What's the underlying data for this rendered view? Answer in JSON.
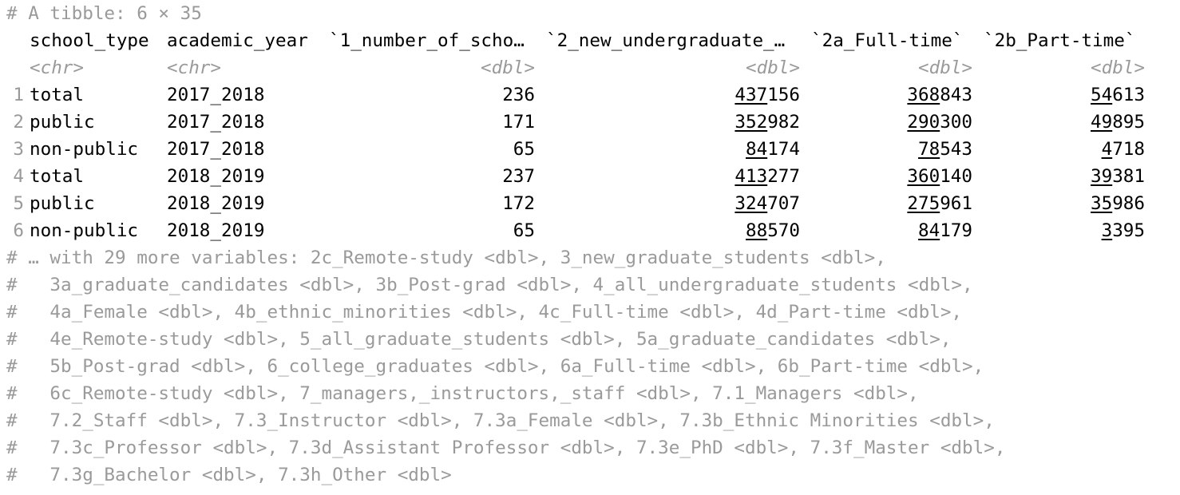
{
  "console": {
    "header": "# A tibble: 6 × 35",
    "columns": [
      {
        "name": "school_type",
        "type": "<chr>"
      },
      {
        "name": "academic_year",
        "type": "<chr>"
      },
      {
        "name": "`1_number_of_scho…",
        "type": "<dbl>"
      },
      {
        "name": "`2_new_undergraduate_…",
        "type": "<dbl>"
      },
      {
        "name": "`2a_Full-time`",
        "type": "<dbl>"
      },
      {
        "name": "`2b_Part-time`",
        "type": "<dbl>"
      }
    ],
    "rows": [
      {
        "n": "1",
        "school_type": "total",
        "academic_year": "2017_2018",
        "v1": "236",
        "v2_hi": "437",
        "v2_lo": "156",
        "v3_hi": "368",
        "v3_lo": "843",
        "v4_hi": "54",
        "v4_lo": "613"
      },
      {
        "n": "2",
        "school_type": "public",
        "academic_year": "2017_2018",
        "v1": "171",
        "v2_hi": "352",
        "v2_lo": "982",
        "v3_hi": "290",
        "v3_lo": "300",
        "v4_hi": "49",
        "v4_lo": "895"
      },
      {
        "n": "3",
        "school_type": "non-public",
        "academic_year": "2017_2018",
        "v1": "65",
        "v2_hi": "84",
        "v2_lo": "174",
        "v3_hi": "78",
        "v3_lo": "543",
        "v4_hi": "4",
        "v4_lo": "718"
      },
      {
        "n": "4",
        "school_type": "total",
        "academic_year": "2018_2019",
        "v1": "237",
        "v2_hi": "413",
        "v2_lo": "277",
        "v3_hi": "360",
        "v3_lo": "140",
        "v4_hi": "39",
        "v4_lo": "381"
      },
      {
        "n": "5",
        "school_type": "public",
        "academic_year": "2018_2019",
        "v1": "172",
        "v2_hi": "324",
        "v2_lo": "707",
        "v3_hi": "275",
        "v3_lo": "961",
        "v4_hi": "35",
        "v4_lo": "986"
      },
      {
        "n": "6",
        "school_type": "non-public",
        "academic_year": "2018_2019",
        "v1": "65",
        "v2_hi": "88",
        "v2_lo": "570",
        "v3_hi": "84",
        "v3_lo": "179",
        "v4_hi": "3",
        "v4_lo": "395"
      }
    ],
    "footer": [
      "# … with 29 more variables: 2c_Remote-study <dbl>, 3_new_graduate_students <dbl>,",
      "#   3a_graduate_candidates <dbl>, 3b_Post-grad <dbl>, 4_all_undergraduate_students <dbl>,",
      "#   4a_Female <dbl>, 4b_ethnic_minorities <dbl>, 4c_Full-time <dbl>, 4d_Part-time <dbl>,",
      "#   4e_Remote-study <dbl>, 5_all_graduate_students <dbl>, 5a_graduate_candidates <dbl>,",
      "#   5b_Post-grad <dbl>, 6_college_graduates <dbl>, 6a_Full-time <dbl>, 6b_Part-time <dbl>,",
      "#   6c_Remote-study <dbl>, 7_managers,_instructors,_staff <dbl>, 7.1_Managers <dbl>,",
      "#   7.2_Staff <dbl>, 7.3_Instructor <dbl>, 7.3a_Female <dbl>, 7.3b_Ethnic Minorities <dbl>,",
      "#   7.3c_Professor <dbl>, 7.3d_Assistant Professor <dbl>, 7.3e_PhD <dbl>, 7.3f_Master <dbl>,",
      "#   7.3g_Bachelor <dbl>, 7.3h_Other <dbl>"
    ]
  }
}
